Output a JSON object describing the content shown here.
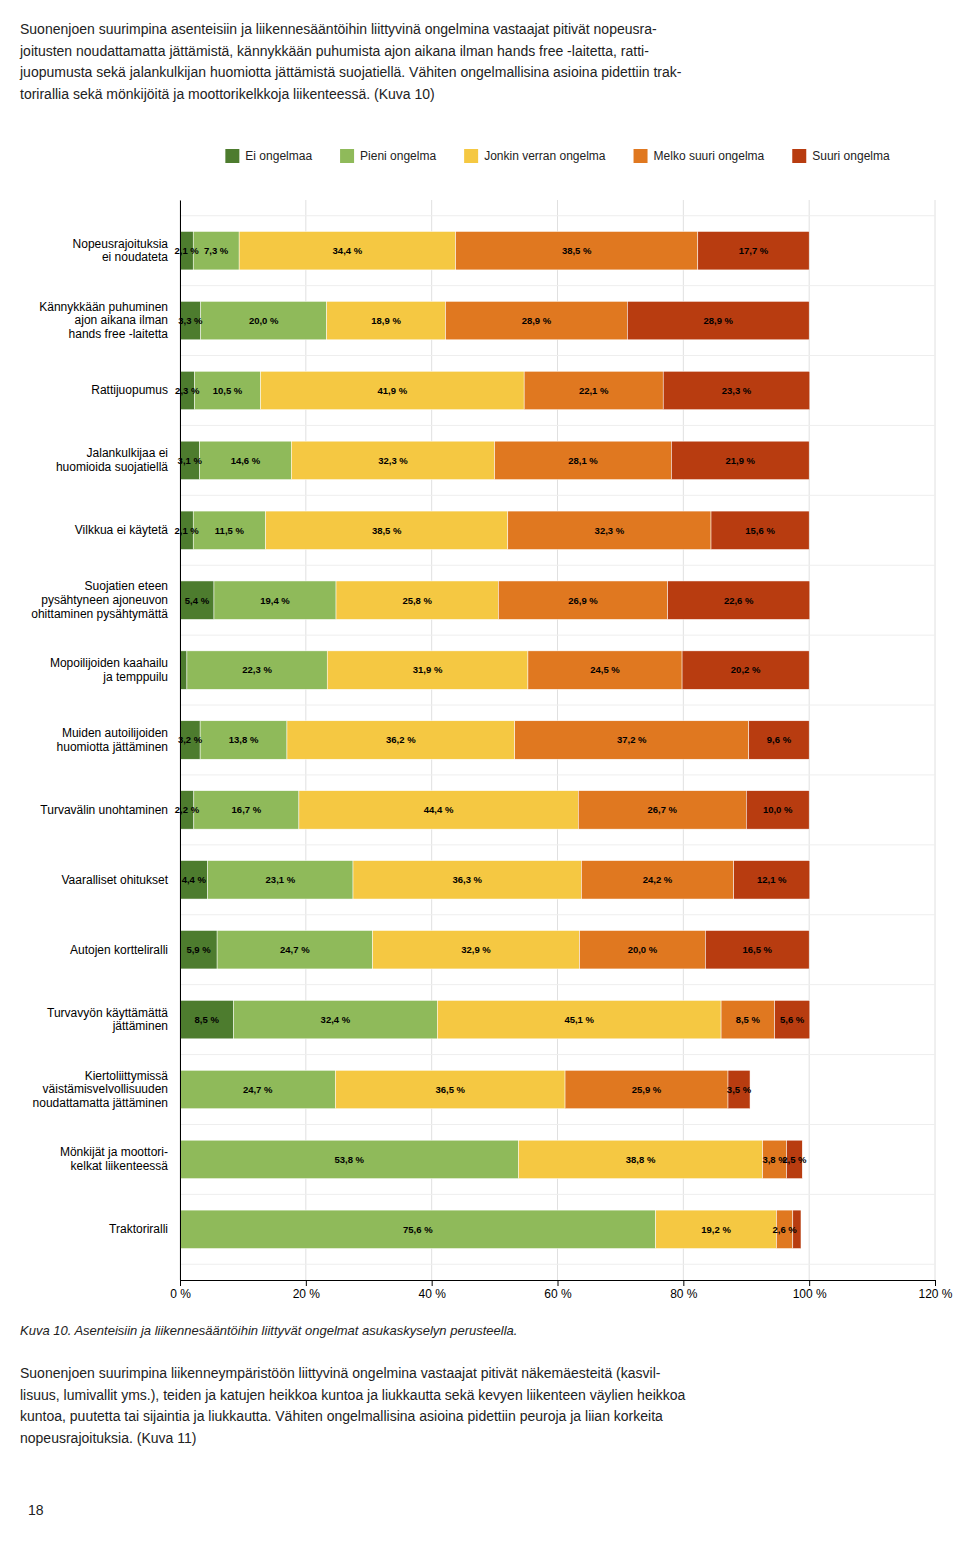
{
  "header_text": "Suonenjoen suurimpina asenteisiin ja liikennesääntöihin liittyvinä ongelmina vastaajat pitivät nopeusra-\njoitusten noudattamatta jättämistä, kännykkään puhumista ajon aikana ilman hands free -laitetta, ratti-\njuopumusta sekä jalankulkijan huomiotta jättämistä suojatiellä. Vähiten ongelmallisina asioina pidettiin trak-\ntorirallia sekä mönkijöitä ja moottorikelkkoja liikenteessä. (Kuva 10)",
  "chart_data": {
    "type": "bar",
    "orientation": "horizontal",
    "stacked": true,
    "data_labels": true,
    "grid": true,
    "categories": [
      "Nopeusrajoituksia\nei noudateta",
      "Kännykkään puhuminen\najon aikana ilman\nhands free -laitetta",
      "Rattijuopumus",
      "Jalankulkijaa ei\nhuomioida suojatiellä",
      "Vilkkua ei käytetä",
      "Suojatien eteen\npysähtyneen ajoneuvon\nohittaminen pysähtymättä",
      "Mopoilijoiden kaahailu\nja temppuilu",
      "Muiden autoilijoiden\nhuomiotta jättäminen",
      "Turvavälin unohtaminen",
      "Vaaralliset ohitukset",
      "Autojen kortteliralli",
      "Turvavyön käyttämättä\njättäminen",
      "Kiertoliittymissä\nväistämisvelvollisuuden\nnoudattamatta jättäminen",
      "Mönkijät ja moottori-\nkelkat liikenteessä",
      "Traktoriralli"
    ],
    "series": [
      {
        "name": "Ei ongelmaa",
        "color": "#4d7c2e",
        "values": [
          2.1,
          3.3,
          2.3,
          3.1,
          2.1,
          5.4,
          1.1,
          3.2,
          2.2,
          4.4,
          5.9,
          8.5,
          0.0,
          0.0,
          0.0
        ],
        "value_labels": [
          "2,1 %",
          "3,3 %",
          "2,3 %",
          "3,1 %",
          "2,1 %",
          "5,4 %",
          null,
          "3,2 %",
          "2,2 %",
          "4,4 %",
          "5,9 %",
          "8,5 %",
          null,
          null,
          null
        ]
      },
      {
        "name": "Pieni ongelma",
        "color": "#8fba5a",
        "values": [
          7.3,
          20.0,
          10.5,
          14.6,
          11.5,
          19.4,
          22.3,
          13.8,
          16.7,
          23.1,
          24.7,
          32.4,
          24.7,
          53.8,
          75.6
        ],
        "value_labels": [
          "7,3 %",
          "20,0 %",
          "10,5 %",
          "14,6 %",
          "11,5 %",
          "19,4 %",
          "22,3 %",
          "13,8 %",
          "16,7 %",
          "23,1 %",
          "24,7 %",
          "32,4 %",
          "24,7 %",
          "53,8 %",
          "75,6 %"
        ]
      },
      {
        "name": "Jonkin verran ongelma",
        "color": "#f5c842",
        "values": [
          34.4,
          18.9,
          41.9,
          32.3,
          38.5,
          25.8,
          31.9,
          36.2,
          44.4,
          36.3,
          32.9,
          45.1,
          36.5,
          38.8,
          19.2
        ],
        "value_labels": [
          "34,4 %",
          "18,9 %",
          "41,9 %",
          "32,3 %",
          "38,5 %",
          "25,8 %",
          "31,9 %",
          "36,2 %",
          "44,4 %",
          "36,3 %",
          "32,9 %",
          "45,1 %",
          "36,5 %",
          "38,8 %",
          "19,2 %"
        ]
      },
      {
        "name": "Melko suuri ongelma",
        "color": "#e07820",
        "values": [
          38.5,
          28.9,
          22.1,
          28.1,
          32.3,
          26.9,
          24.5,
          37.2,
          26.7,
          24.2,
          20.0,
          8.5,
          25.9,
          3.8,
          2.6
        ],
        "value_labels": [
          "38,5 %",
          "28,9 %",
          "22,1 %",
          "28,1 %",
          "32,3 %",
          "26,9 %",
          "24,5 %",
          "37,2 %",
          "26,7 %",
          "24,2 %",
          "20,0 %",
          "8,5 %",
          "25,9 %",
          "3,8 %",
          "2,6 %"
        ]
      },
      {
        "name": "Suuri ongelma",
        "color": "#b83c10",
        "values": [
          17.7,
          28.9,
          23.3,
          21.9,
          15.6,
          22.6,
          20.2,
          9.6,
          10.0,
          12.1,
          16.5,
          5.6,
          3.5,
          2.5,
          1.3
        ],
        "value_labels": [
          "17,7 %",
          "28,9 %",
          "23,3 %",
          "21,9 %",
          "15,6 %",
          "22,6 %",
          "20,2 %",
          "9,6 %",
          "10,0 %",
          "12,1 %",
          "16,5 %",
          "5,6 %",
          "3,5 %",
          "2,5 %",
          null
        ]
      }
    ],
    "xlim": [
      0,
      120
    ],
    "xticks": [
      {
        "value": 0,
        "label": "0 %"
      },
      {
        "value": 20,
        "label": "20 %"
      },
      {
        "value": 40,
        "label": "40 %"
      },
      {
        "value": 60,
        "label": "60 %"
      },
      {
        "value": 80,
        "label": "80 %"
      },
      {
        "value": 100,
        "label": "100 %"
      },
      {
        "value": 120,
        "label": "120 %"
      }
    ]
  },
  "caption": "Kuva 10. Asenteisiin ja liikennesääntöihin liittyvät ongelmat asukaskyselyn perusteella.",
  "footer_text": "Suonenjoen suurimpina liikenneympäristöön liittyvinä ongelmina vastaajat pitivät näkemäesteitä (kasvil-\nlisuus, lumivallit yms.), teiden ja katujen heikkoa kuntoa ja liukkautta sekä kevyen liikenteen väylien heikkoa\nkuntoa, puutetta tai sijaintia ja liukkautta. Vähiten ongelmallisina asioina pidettiin peuroja ja liian korkeita\nnopeusrajoituksia. (Kuva 11)",
  "page_number": "18"
}
